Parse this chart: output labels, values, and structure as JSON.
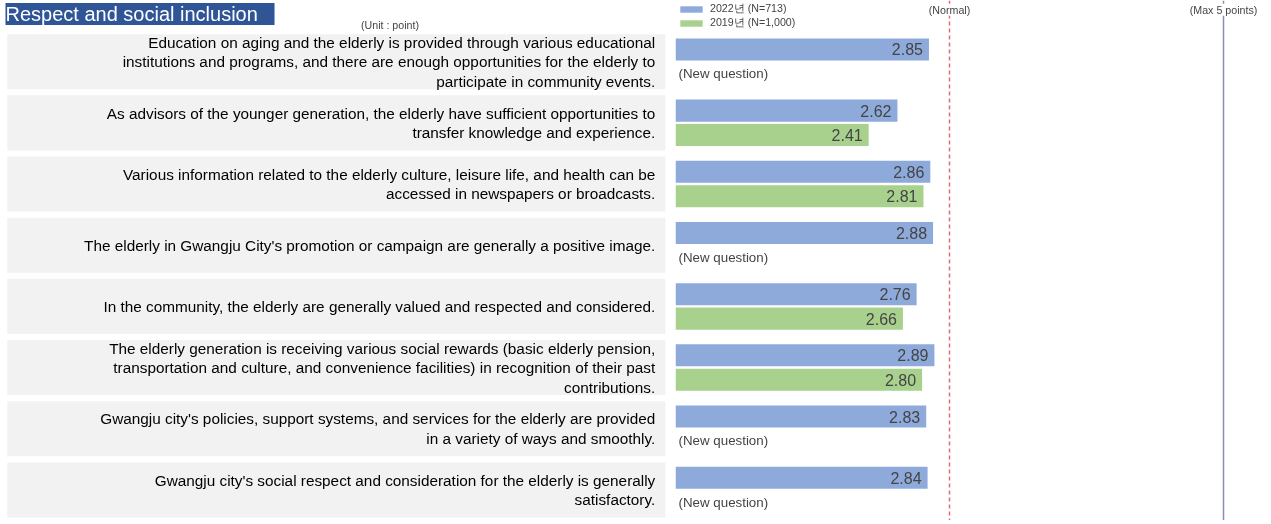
{
  "chart_data": {
    "type": "bar",
    "orientation": "horizontal",
    "title": "Respect and social inclusion",
    "subtitle": "(Unit : point)",
    "categories": [
      "Education on aging and the elderly is provided through various educational institutions and programs, and there are enough opportunities for the elderly to participate in community events.",
      "As advisors of the younger generation, the elderly have sufficient opportunities to transfer knowledge and experience.",
      "Various information related to the elderly culture, leisure life, and health can be accessed in newspapers or broadcasts.",
      "The elderly in Gwangju City's promotion or campaign are generally a positive image.",
      "In the community, the elderly are generally valued and respected and considered.",
      "The elderly generation is receiving various social rewards (basic elderly pension, transportation and culture, and convenience facilities) in recognition of their past contributions.",
      "Gwangju city's policies, support systems, and services for the elderly are provided in a variety of ways and smoothly.",
      "Gwangju city's social respect and consideration for the elderly is generally satisfactory."
    ],
    "series": [
      {
        "name": "2022년 (N=713)",
        "color": "#8eaadb",
        "values": [
          2.85,
          2.62,
          2.86,
          2.88,
          2.76,
          2.89,
          2.83,
          2.84
        ],
        "value_labels": [
          "2.85",
          "2.62",
          "2.86",
          "2.88",
          "2.76",
          "2.89",
          "2.83",
          "2.84"
        ]
      },
      {
        "name": "2019년 (N=1,000)",
        "color": "#a9d18e",
        "values": [
          null,
          2.41,
          2.81,
          null,
          2.66,
          2.8,
          null,
          null
        ],
        "value_labels": [
          null,
          "2.41",
          "2.81",
          null,
          "2.66",
          "2.80",
          null,
          null
        ]
      }
    ],
    "xlim": [
      1,
      5.27
    ],
    "tick_labels": "y",
    "legend": "top left",
    "ref_lines": [
      {
        "axis": "x",
        "value": 3,
        "label": "(Normal)",
        "color": "#e06b7a",
        "line_style": "dashed"
      },
      {
        "axis": "x",
        "value": 5,
        "label": "(Max 5 points)",
        "color": "#8a8fb0",
        "line_style": "solid"
      }
    ],
    "annotations": [
      "(New question)",
      "(New question)",
      "(New question)",
      "(New question)"
    ]
  }
}
